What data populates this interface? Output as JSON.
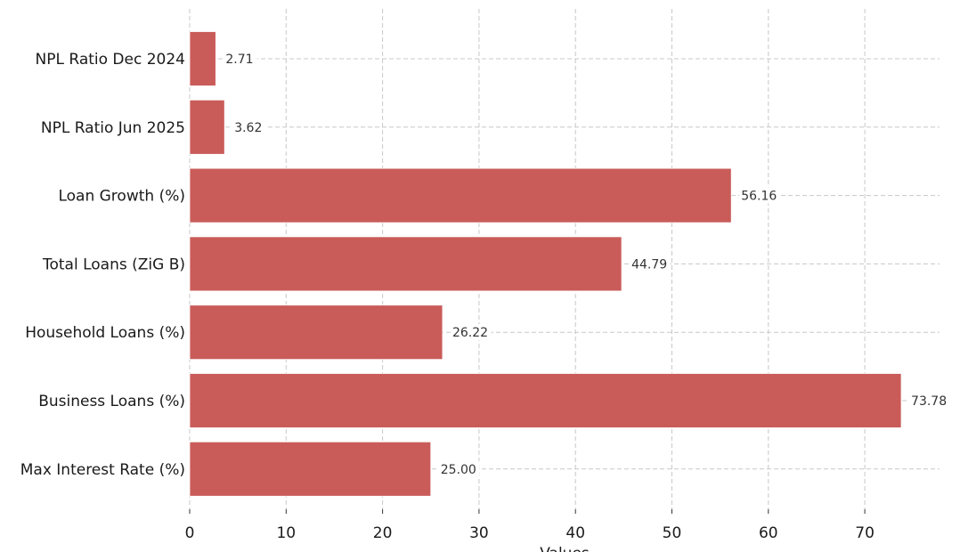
{
  "chart_data": {
    "type": "bar",
    "orientation": "horizontal",
    "categories": [
      "NPL Ratio Dec 2024",
      "NPL Ratio Jun 2025",
      "Loan Growth (%)",
      "Total Loans (ZiG B)",
      "Household Loans (%)",
      "Business Loans (%)",
      "Max Interest Rate (%)"
    ],
    "values": [
      2.71,
      3.62,
      56.16,
      44.79,
      26.22,
      73.78,
      25.0
    ],
    "value_labels": [
      "2.71",
      "3.62",
      "56.16",
      "44.79",
      "26.22",
      "73.78",
      "25.00"
    ],
    "title": "",
    "xlabel": "Values",
    "ylabel": "",
    "xlim": [
      0,
      77.5
    ],
    "xticks": [
      0,
      10,
      20,
      30,
      40,
      50,
      60,
      70
    ],
    "xtick_labels": [
      "0",
      "10",
      "20",
      "30",
      "40",
      "50",
      "60",
      "70"
    ],
    "grid": true,
    "bar_color": "#c95c59"
  }
}
